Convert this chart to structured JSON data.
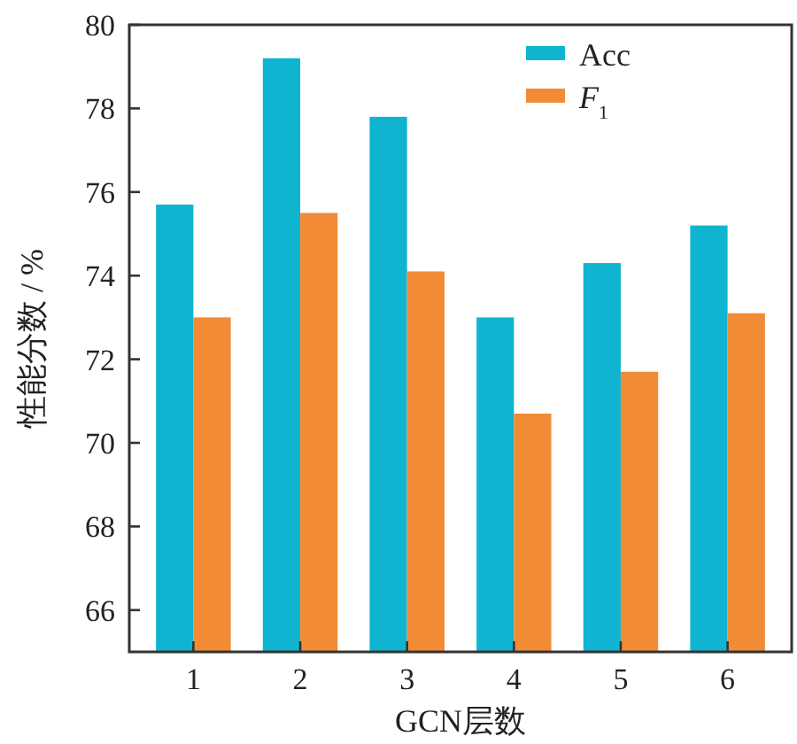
{
  "chart_data": {
    "type": "bar",
    "xlabel": "GCN层数",
    "ylabel": "性能分数 / %",
    "categories": [
      "1",
      "2",
      "3",
      "4",
      "5",
      "6"
    ],
    "series": [
      {
        "name": "Acc",
        "color": "#0fb5d0",
        "values": [
          75.7,
          79.2,
          77.8,
          73.0,
          74.3,
          75.2
        ]
      },
      {
        "name": "*F*$_{1}$",
        "color": "#f28b35",
        "values": [
          73.0,
          75.5,
          74.1,
          70.7,
          71.7,
          73.1
        ]
      }
    ],
    "ylim": [
      65,
      80
    ],
    "yticks": [
      66,
      68,
      70,
      72,
      74,
      76,
      78,
      80
    ],
    "legend": "top right",
    "grid": false
  }
}
